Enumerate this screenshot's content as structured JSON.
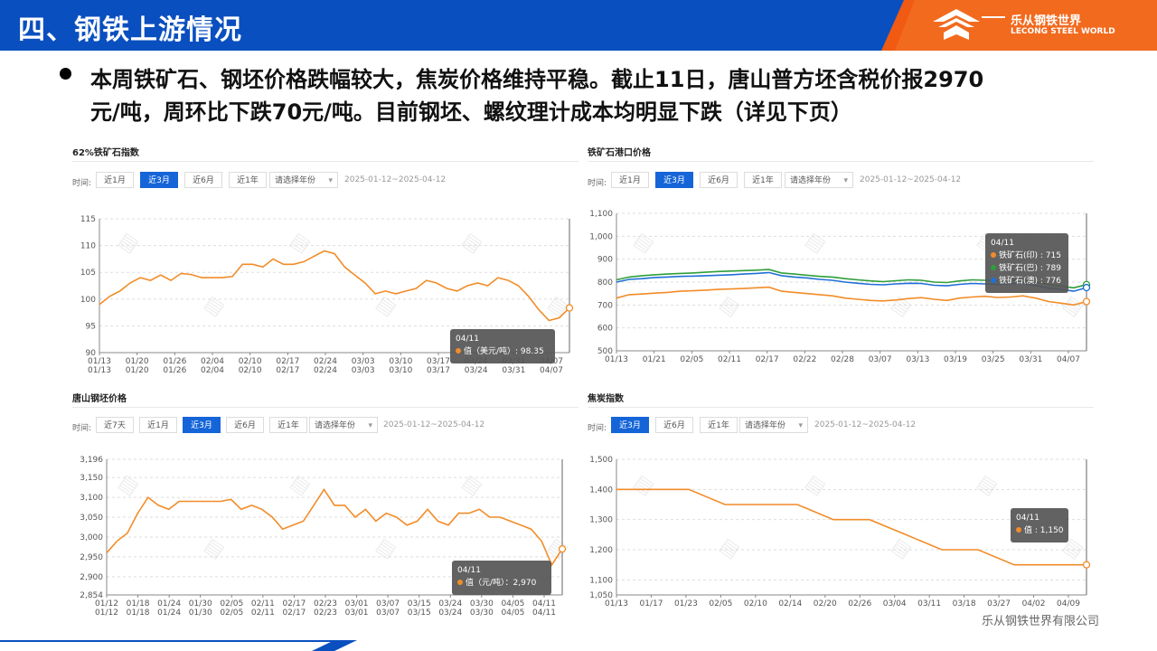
{
  "header": {
    "title": "四、钢铁上游情况",
    "logo_name": "乐从钢铁世界",
    "logo_sub": "LECONG STEEL WORLD",
    "bg_color": "#0a4fbf",
    "accent_color": "#f05a12"
  },
  "bullet": {
    "line1": "本周铁矿石、钢坯价格跌幅较大，焦炭价格维持平稳。截止11日，唐山普方坯含税价报2970",
    "line2": "元/吨，周环比下跌70元/吨。目前钢坯、螺纹理计成本均明显下跌（详见下页）"
  },
  "footer": {
    "company": "乐从钢铁世界有限公司"
  },
  "panels": [
    {
      "title": "62%铁矿石指数",
      "time_label": "时间:",
      "buttons": [
        {
          "label": "近1月",
          "active": false
        },
        {
          "label": "近3月",
          "active": true
        },
        {
          "label": "近6月",
          "active": false
        },
        {
          "label": "近1年",
          "active": false
        }
      ],
      "select_placeholder": "请选择年份",
      "date_range": "2025-01-12~2025-04-12",
      "tooltip": {
        "date": "04/11",
        "rows": [
          {
            "label": "值（美元/吨）: 98.35",
            "color": "#f28c28"
          }
        ]
      }
    },
    {
      "title": "铁矿石港口价格",
      "time_label": "时间:",
      "buttons": [
        {
          "label": "近1月",
          "active": false
        },
        {
          "label": "近3月",
          "active": true
        },
        {
          "label": "近6月",
          "active": false
        },
        {
          "label": "近1年",
          "active": false
        }
      ],
      "select_placeholder": "请选择年份",
      "date_range": "2025-01-12~2025-04-12",
      "tooltip": {
        "date": "04/11",
        "rows": [
          {
            "label": "铁矿石(印) : 715",
            "color": "#f28c28"
          },
          {
            "label": "铁矿石(巴) : 789",
            "color": "#2e9e3a"
          },
          {
            "label": "铁矿石(澳) : 776",
            "color": "#1f6fd6"
          }
        ]
      }
    },
    {
      "title": "唐山钢坯价格",
      "time_label": "时间:",
      "buttons": [
        {
          "label": "近7天",
          "active": false
        },
        {
          "label": "近1月",
          "active": false
        },
        {
          "label": "近3月",
          "active": true
        },
        {
          "label": "近6月",
          "active": false
        },
        {
          "label": "近1年",
          "active": false
        }
      ],
      "select_placeholder": "请选择年份",
      "date_range": "2025-01-12~2025-04-12",
      "tooltip": {
        "date": "04/11",
        "rows": [
          {
            "label": "值（元/吨）：2,970",
            "color": "#f28c28"
          }
        ]
      }
    },
    {
      "title": "焦炭指数",
      "time_label": "时间:",
      "buttons": [
        {
          "label": "近3月",
          "active": true
        },
        {
          "label": "近6月",
          "active": false
        },
        {
          "label": "近1年",
          "active": false
        }
      ],
      "select_placeholder": "请选择年份",
      "date_range": "2025-01-12~2025-04-12",
      "tooltip": {
        "date": "04/11",
        "rows": [
          {
            "label": "值 : 1,150",
            "color": "#f28c28"
          }
        ]
      }
    }
  ],
  "chart_data": [
    {
      "type": "line",
      "ylim": [
        90,
        115
      ],
      "yticks": [
        "90",
        "95",
        "100",
        "105",
        "110",
        "115"
      ],
      "xticks": [
        "01/13",
        "01/20",
        "01/26",
        "02/04",
        "02/10",
        "02/17",
        "02/24",
        "03/03",
        "03/10",
        "03/17",
        "03/24",
        "03/31",
        "04/07"
      ],
      "series": [
        {
          "color": "#f28c28",
          "values": [
            99.0,
            100.5,
            101.5,
            103.0,
            104.0,
            103.5,
            104.5,
            103.5,
            104.8,
            104.6,
            104.0,
            104.0,
            104.0,
            104.2,
            106.5,
            106.5,
            106.0,
            107.5,
            106.5,
            106.5,
            107.0,
            108.0,
            109.0,
            108.5,
            106.0,
            104.5,
            103.0,
            101.0,
            101.5,
            101.0,
            101.5,
            102.0,
            103.5,
            103.0,
            102.0,
            101.5,
            102.5,
            103.0,
            102.5,
            104.0,
            103.5,
            102.5,
            100.5,
            98.0,
            96.0,
            96.5,
            98.35
          ]
        }
      ]
    },
    {
      "type": "line",
      "ylim": [
        500,
        1100
      ],
      "yticks": [
        "500",
        "600",
        "700",
        "800",
        "900",
        "1,000",
        "1,100"
      ],
      "xticks": [
        "01/13",
        "01/21",
        "02/05",
        "02/11",
        "02/17",
        "02/22",
        "02/28",
        "03/07",
        "03/13",
        "03/19",
        "03/25",
        "03/31",
        "04/07"
      ],
      "series": [
        {
          "name": "铁矿石(印)",
          "color": "#f28c28",
          "values": [
            730,
            745,
            748,
            752,
            755,
            760,
            762,
            765,
            768,
            770,
            772,
            775,
            778,
            760,
            755,
            750,
            745,
            740,
            730,
            725,
            720,
            718,
            722,
            728,
            732,
            725,
            720,
            730,
            735,
            738,
            733,
            735,
            740,
            730,
            715,
            708,
            700,
            715
          ]
        },
        {
          "name": "铁矿石(巴)",
          "color": "#2e9e3a",
          "values": [
            810,
            822,
            828,
            832,
            835,
            838,
            840,
            843,
            846,
            848,
            850,
            852,
            855,
            840,
            835,
            830,
            825,
            822,
            815,
            810,
            805,
            802,
            806,
            810,
            808,
            800,
            798,
            805,
            810,
            808,
            806,
            808,
            810,
            800,
            790,
            782,
            775,
            789
          ]
        },
        {
          "name": "铁矿石(澳)",
          "color": "#1f6fd6",
          "values": [
            800,
            812,
            815,
            820,
            822,
            825,
            826,
            828,
            830,
            832,
            835,
            838,
            842,
            828,
            822,
            818,
            812,
            808,
            800,
            795,
            790,
            788,
            792,
            795,
            794,
            786,
            784,
            790,
            794,
            792,
            790,
            792,
            796,
            785,
            774,
            768,
            760,
            776
          ]
        }
      ]
    },
    {
      "type": "line",
      "ylim": [
        2854,
        3196
      ],
      "yticks": [
        "2,854",
        "2,900",
        "2,950",
        "3,000",
        "3,050",
        "3,100",
        "3,150",
        "3,196"
      ],
      "xticks": [
        "01/12",
        "01/18",
        "01/24",
        "01/30",
        "02/05",
        "02/11",
        "02/17",
        "02/23",
        "03/01",
        "03/07",
        "03/15",
        "03/24",
        "03/30",
        "04/05",
        "04/11"
      ],
      "series": [
        {
          "color": "#f28c28",
          "values": [
            2960,
            2990,
            3010,
            3060,
            3100,
            3080,
            3070,
            3090,
            3090,
            3090,
            3090,
            3090,
            3095,
            3070,
            3080,
            3070,
            3050,
            3020,
            3030,
            3040,
            3080,
            3120,
            3080,
            3080,
            3050,
            3070,
            3040,
            3060,
            3050,
            3030,
            3040,
            3070,
            3040,
            3030,
            3060,
            3060,
            3070,
            3050,
            3050,
            3040,
            3030,
            3020,
            2990,
            2930,
            2970
          ]
        }
      ]
    },
    {
      "type": "line",
      "ylim": [
        1050,
        1500
      ],
      "yticks": [
        "1,050",
        "1,100",
        "1,200",
        "1,300",
        "1,400",
        "1,500"
      ],
      "xticks": [
        "01/13",
        "01/17",
        "01/23",
        "02/05",
        "02/10",
        "02/14",
        "02/20",
        "02/26",
        "03/04",
        "03/11",
        "03/18",
        "03/27",
        "04/02",
        "04/09"
      ],
      "series": [
        {
          "color": "#f28c28",
          "values": [
            1400,
            1400,
            1400,
            1350,
            1350,
            1350,
            1300,
            1300,
            1250,
            1200,
            1200,
            1150,
            1150,
            1150
          ]
        }
      ]
    }
  ]
}
